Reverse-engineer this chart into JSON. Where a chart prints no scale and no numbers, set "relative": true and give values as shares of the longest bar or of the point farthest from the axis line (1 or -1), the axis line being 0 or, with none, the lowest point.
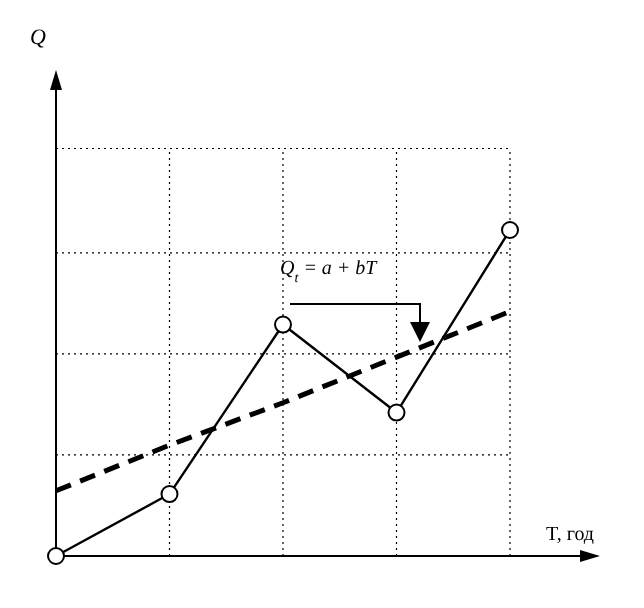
{
  "chart_data": {
    "type": "line",
    "relative": true,
    "xlabel": "T, год",
    "categories": [
      null,
      null,
      null,
      null,
      null
    ],
    "series": [
      {
        "color": "#000000",
        "values": [
          0,
          0.19,
          0.71,
          0.44,
          1
        ],
        "marker": "circle",
        "line_style": "solid"
      },
      {
        "type": "line",
        "color": "#000000",
        "values": [
          0.2,
          0.34,
          0.47,
          0.61,
          0.75
        ],
        "marker": "none",
        "line_style": "dashed"
      }
    ],
    "annotations": [
      "Q$_{t}$ = a + bT",
      "Q"
    ],
    "grid": true
  }
}
